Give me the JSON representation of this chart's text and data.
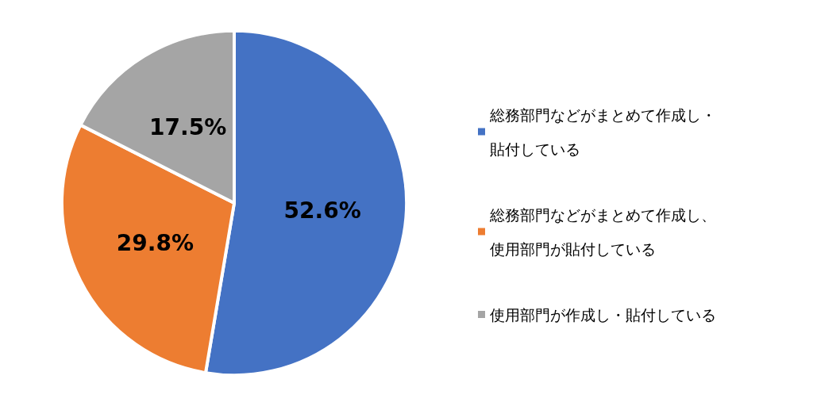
{
  "chart_data": {
    "type": "pie",
    "categories": [
      "総務部門などがまとめて作成し・貼付している",
      "総務部門などがまとめて作成し、使用部門が貼付している",
      "使用部門が作成し・貼付している"
    ],
    "values": [
      52.6,
      29.8,
      17.5
    ],
    "colors": [
      "#4472c4",
      "#ed7d31",
      "#a5a5a5"
    ],
    "value_labels": [
      "52.6%",
      "29.8%",
      "17.5%"
    ],
    "legend": "right"
  }
}
